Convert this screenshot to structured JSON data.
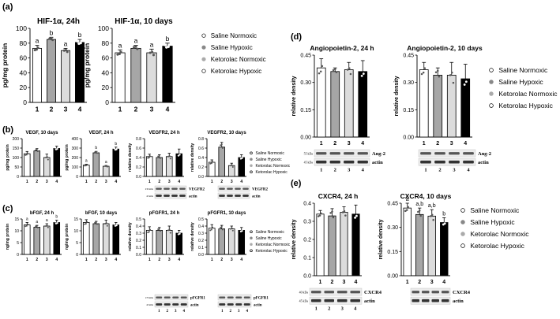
{
  "panel_labels": [
    "(a)",
    "(b)",
    "(c)",
    "(d)",
    "(e)"
  ],
  "legend": {
    "items": [
      "Saline Normoxic",
      "Saline Hypoxic",
      "Ketorolac Normoxic",
      "Ketorolac Hypoxic"
    ],
    "colors": [
      "#ffffff",
      "#a6a6a6",
      "#dcdcdc",
      "#000000"
    ]
  },
  "blot_labels": {
    "vegfr2": "VEGFR2",
    "pfgfr1": "pFGFR1",
    "ang2": "Ang-2",
    "cxcr4": "CXCR4",
    "actin": "actin",
    "kda_230": "230 kDa",
    "kda_170": "170 kDa",
    "kda_45": "45 kDa",
    "kda_55": "55 kDa",
    "kda_60": "60 kDa",
    "kda_40": "40 kDa"
  },
  "chart_data": [
    {
      "id": "hif24",
      "type": "bar",
      "title": "HIF-1α, 24h",
      "ylabel": "pg/mg protein",
      "xlabel": "",
      "categories": [
        "1",
        "2",
        "3",
        "4"
      ],
      "values": [
        73,
        85,
        70,
        81
      ],
      "errors": [
        4,
        3,
        3,
        4
      ],
      "ylim": [
        0,
        100
      ],
      "yticks": [
        "0",
        "20",
        "40",
        "60",
        "80",
        "100"
      ],
      "annotations": [
        "a",
        "b",
        "a",
        "b"
      ]
    },
    {
      "id": "hif10",
      "type": "bar",
      "title": "HIF-1α, 10 days",
      "ylabel": "pg/mg protein",
      "xlabel": "",
      "categories": [
        "1",
        "2",
        "3",
        "4"
      ],
      "values": [
        67,
        73,
        67,
        76
      ],
      "errors": [
        4,
        4,
        5,
        4
      ],
      "ylim": [
        0,
        100
      ],
      "yticks": [
        "0",
        "20",
        "40",
        "60",
        "80",
        "100"
      ],
      "annotations": [
        "a",
        "a",
        "a",
        "b"
      ]
    },
    {
      "id": "vegf10",
      "type": "bar",
      "title": "VEGF, 10 days",
      "ylabel": "pg/mg protein",
      "xlabel": "",
      "categories": [
        "1",
        "2",
        "3",
        "4"
      ],
      "values": [
        120,
        135,
        100,
        148
      ],
      "errors": [
        12,
        12,
        18,
        12
      ],
      "ylim": [
        0,
        200
      ],
      "yticks": [
        "0",
        "50",
        "100",
        "150",
        "200"
      ],
      "annotations": []
    },
    {
      "id": "vegf24",
      "type": "bar",
      "title": "VEGF, 24 h",
      "ylabel": "pg/mg protein",
      "xlabel": "",
      "categories": [
        "1",
        "2",
        "3",
        "4"
      ],
      "values": [
        120,
        250,
        108,
        290
      ],
      "errors": [
        10,
        15,
        8,
        20
      ],
      "ylim": [
        0,
        400
      ],
      "yticks": [
        "0",
        "100",
        "200",
        "300",
        "400"
      ],
      "annotations": [
        "a",
        "b",
        "a",
        "b"
      ]
    },
    {
      "id": "vegfr2_24",
      "type": "bar",
      "title": "VEGFR2, 24 h",
      "ylabel": "relative density",
      "xlabel": "",
      "categories": [
        "1",
        "2",
        "3",
        "4"
      ],
      "values": [
        0.42,
        0.4,
        0.42,
        0.48
      ],
      "errors": [
        0.05,
        0.06,
        0.07,
        0.1
      ],
      "ylim": [
        0,
        0.8
      ],
      "yticks": [
        "0.0",
        "0.2",
        "0.4",
        "0.6",
        "0.8"
      ],
      "annotations": []
    },
    {
      "id": "vegfr2_10",
      "type": "bar",
      "title": "VEGFR2, 10 days",
      "ylabel": "relative density",
      "xlabel": "",
      "categories": [
        "1",
        "2",
        "3",
        "4"
      ],
      "values": [
        0.3,
        0.62,
        0.23,
        0.4
      ],
      "errors": [
        0.05,
        0.1,
        0.05,
        0.06
      ],
      "ylim": [
        0,
        0.8
      ],
      "yticks": [
        "0.0",
        "0.2",
        "0.4",
        "0.6",
        "0.8"
      ],
      "annotations": []
    },
    {
      "id": "bfgf24",
      "type": "bar",
      "title": "bFGF, 24 h",
      "ylabel": "ng/mg protein",
      "xlabel": "",
      "categories": [
        "1",
        "2",
        "3",
        "4"
      ],
      "values": [
        12.5,
        11.5,
        12,
        13.5
      ],
      "errors": [
        1,
        0.8,
        1,
        1
      ],
      "ylim": [
        0,
        15
      ],
      "yticks": [
        "0",
        "5",
        "10",
        "15"
      ],
      "annotations": [
        "a",
        "a",
        "a",
        "b"
      ]
    },
    {
      "id": "bfgf10",
      "type": "bar",
      "title": "bFGF, 10 days",
      "ylabel": "ng/mg protein",
      "xlabel": "",
      "categories": [
        "1",
        "2",
        "3",
        "4"
      ],
      "values": [
        13.5,
        13,
        13,
        12.5
      ],
      "errors": [
        1.2,
        1,
        1.5,
        1
      ],
      "ylim": [
        0,
        15
      ],
      "yticks": [
        "0",
        "5",
        "10",
        "15"
      ],
      "annotations": []
    },
    {
      "id": "pfgfr1_24",
      "type": "bar",
      "title": "pFGFR1, 24 h",
      "ylabel": "relative density",
      "xlabel": "",
      "categories": [
        "1",
        "2",
        "3",
        "4"
      ],
      "values": [
        0.34,
        0.34,
        0.34,
        0.3
      ],
      "errors": [
        0.05,
        0.04,
        0.06,
        0.04
      ],
      "ylim": [
        0,
        0.5
      ],
      "yticks": [
        "0.0",
        "0.1",
        "0.2",
        "0.3",
        "0.4",
        "0.5"
      ],
      "annotations": []
    },
    {
      "id": "pfgfr1_10",
      "type": "bar",
      "title": "pFGFR1, 10 days",
      "ylabel": "relative density",
      "xlabel": "",
      "categories": [
        "1",
        "2",
        "3",
        "4"
      ],
      "values": [
        0.37,
        0.36,
        0.36,
        0.34
      ],
      "errors": [
        0.05,
        0.05,
        0.04,
        0.04
      ],
      "ylim": [
        0,
        0.5
      ],
      "yticks": [
        "0.0",
        "0.1",
        "0.2",
        "0.3",
        "0.4",
        "0.5"
      ],
      "annotations": []
    },
    {
      "id": "ang24",
      "type": "bar",
      "title": "Angiopoietin-2, 24 h",
      "ylabel": "relative density",
      "xlabel": "",
      "categories": [
        "1",
        "2",
        "3",
        "4"
      ],
      "values": [
        0.38,
        0.36,
        0.37,
        0.36
      ],
      "errors": [
        0.05,
        0.02,
        0.04,
        0.06
      ],
      "ylim": [
        0,
        0.45
      ],
      "yticks": [
        "0.00",
        "0.15",
        "0.30",
        "0.45"
      ],
      "annotations": []
    },
    {
      "id": "ang10",
      "type": "bar",
      "title": "Angiopoietin-2, 10 days",
      "ylabel": "relative density",
      "xlabel": "",
      "categories": [
        "1",
        "2",
        "3",
        "4"
      ],
      "values": [
        0.37,
        0.34,
        0.34,
        0.32
      ],
      "errors": [
        0.04,
        0.04,
        0.07,
        0.08
      ],
      "ylim": [
        0,
        0.45
      ],
      "yticks": [
        "0.00",
        "0.15",
        "0.30",
        "0.45"
      ],
      "annotations": []
    },
    {
      "id": "cx24",
      "type": "bar",
      "title": "CXCR4, 24 h",
      "ylabel": "relative density",
      "xlabel": "",
      "categories": [
        "1",
        "2",
        "3",
        "4"
      ],
      "values": [
        0.34,
        0.33,
        0.35,
        0.34
      ],
      "errors": [
        0.02,
        0.04,
        0.03,
        0.05
      ],
      "ylim": [
        0,
        0.4
      ],
      "yticks": [
        "0.0",
        "0.1",
        "0.2",
        "0.3",
        "0.4"
      ],
      "annotations": []
    },
    {
      "id": "cx10",
      "type": "bar",
      "title": "CXCR4, 10 days",
      "ylabel": "relative density",
      "xlabel": "",
      "categories": [
        "1",
        "2",
        "3",
        "4"
      ],
      "values": [
        0.42,
        0.38,
        0.37,
        0.33
      ],
      "errors": [
        0.03,
        0.04,
        0.04,
        0.03
      ],
      "ylim": [
        0,
        0.45
      ],
      "yticks": [
        "0.00",
        "0.15",
        "0.30",
        "0.45"
      ],
      "annotations": [
        "a",
        "a,b",
        "a,b",
        "b"
      ]
    }
  ]
}
